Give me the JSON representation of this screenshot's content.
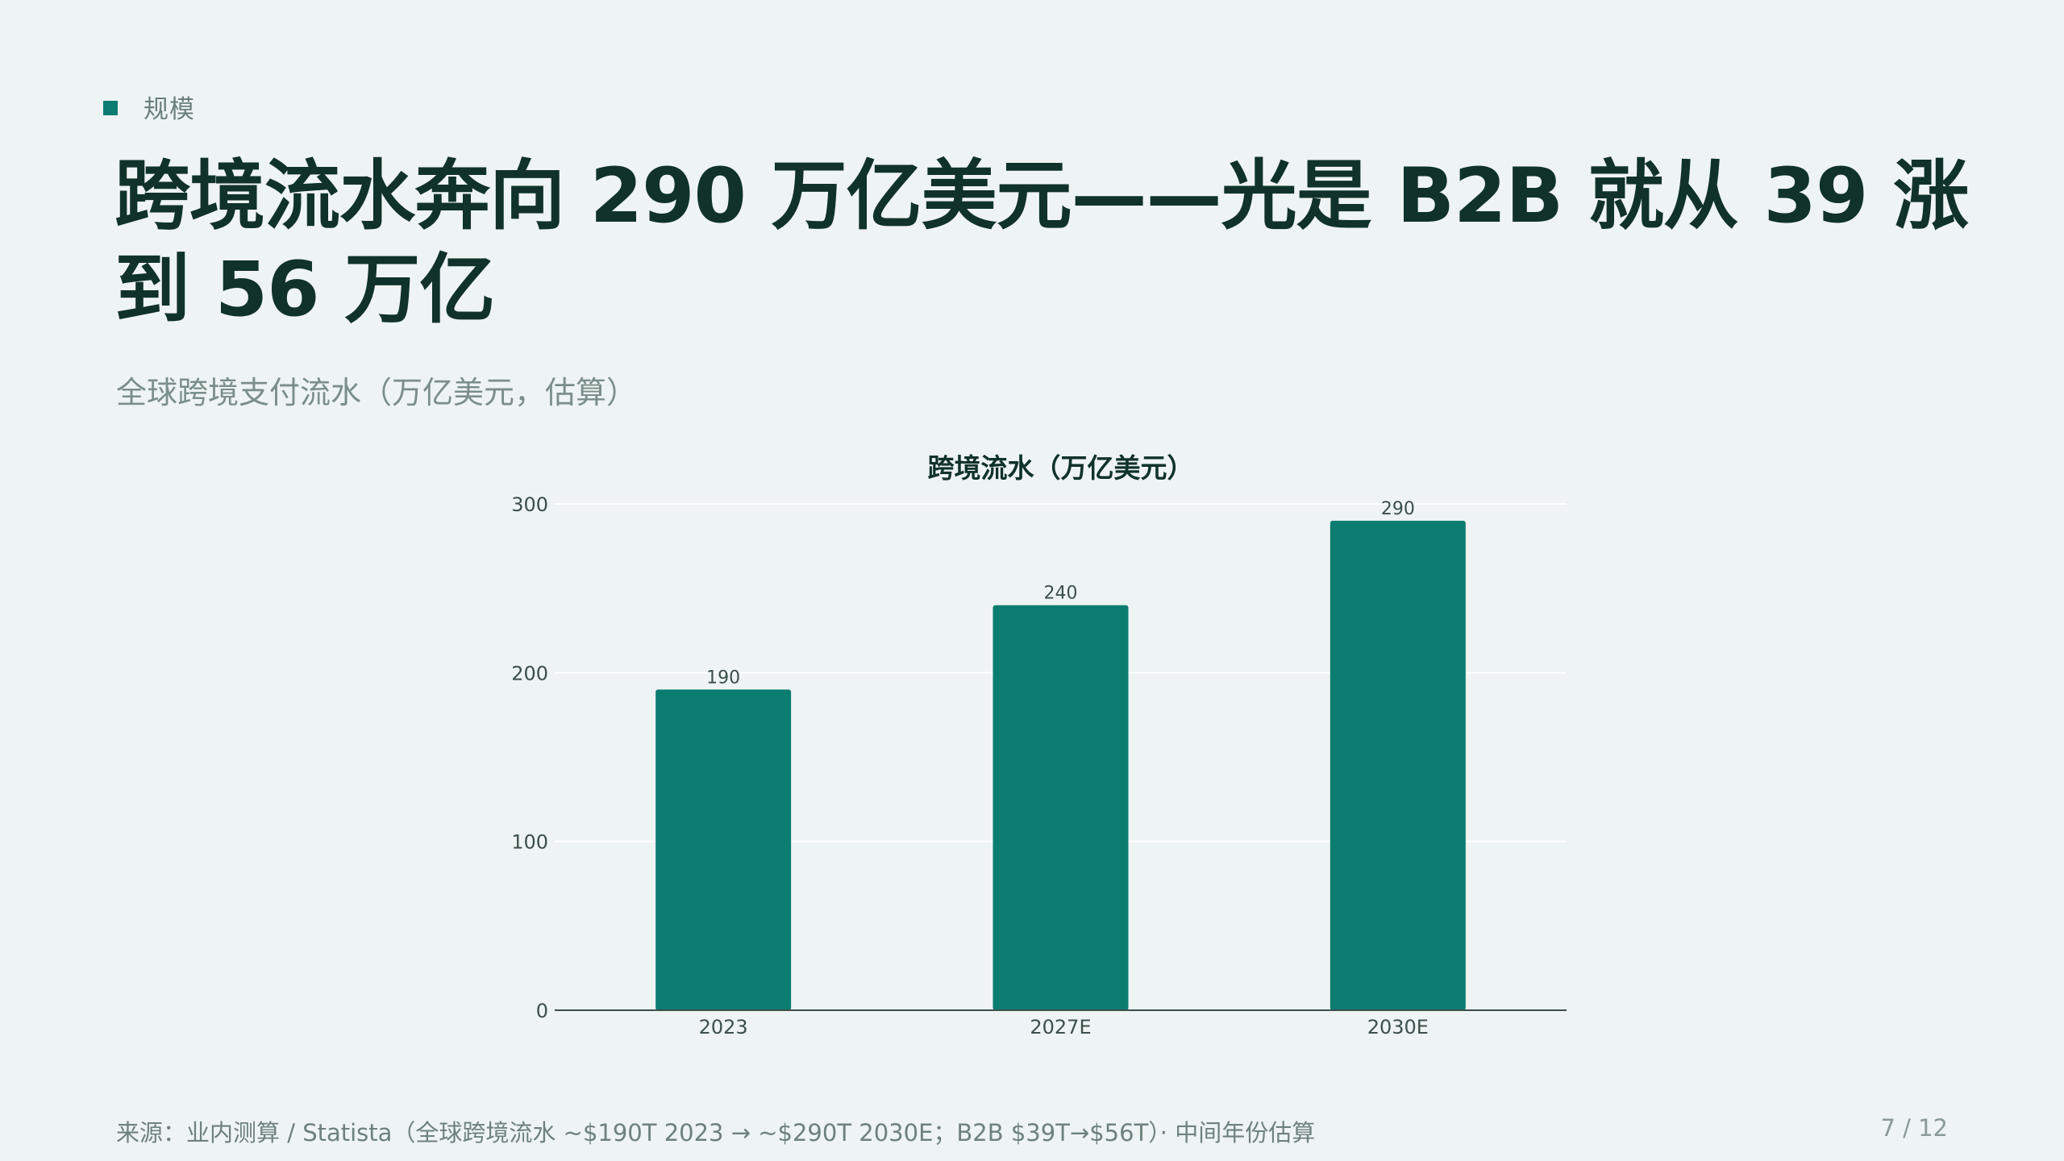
{
  "kicker": {
    "label": "规模",
    "color": "#0b7d70"
  },
  "title": "跨境流水奔向 290 万亿美元——光是 B2B 就从 39 涨到 56 万亿",
  "subtitle": "全球跨境支付流水（万亿美元，估算）",
  "chart_data": {
    "type": "bar",
    "title": "跨境流水（万亿美元）",
    "categories": [
      "2023",
      "2027E",
      "2030E"
    ],
    "values": [
      190,
      240,
      290
    ],
    "data_labels": [
      "190",
      "240",
      "290"
    ],
    "xlabel": "",
    "ylabel": "",
    "ylim": [
      0,
      300
    ],
    "yticks": [
      0,
      100,
      200,
      300
    ],
    "grid": true,
    "legend": "none",
    "bar_color": "#0b7d70"
  },
  "footer": {
    "source": "来源：业内测算 / Statista（全球跨境流水 ~$190T 2023 → ~$290T 2030E；B2B $39T→$56T）· 中间年份估算",
    "page": "7 / 12"
  }
}
